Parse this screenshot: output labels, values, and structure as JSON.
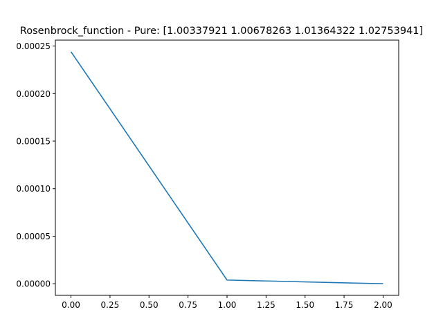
{
  "chart_data": {
    "type": "line",
    "title": "Rosenbrock_function - Pure: [1.00337921 1.00678263 1.01364322 1.02753941]",
    "xlabel": "",
    "ylabel": "",
    "xlim": [
      -0.1,
      2.1
    ],
    "ylim": [
      -1.22e-05,
      0.0002562
    ],
    "x_ticks": [
      0.0,
      0.25,
      0.5,
      0.75,
      1.0,
      1.25,
      1.5,
      1.75,
      2.0
    ],
    "x_tick_labels": [
      "0.00",
      "0.25",
      "0.50",
      "0.75",
      "1.00",
      "1.25",
      "1.50",
      "1.75",
      "2.00"
    ],
    "y_ticks": [
      0.0,
      5e-05,
      0.0001,
      0.00015,
      0.0002,
      0.00025
    ],
    "y_tick_labels": [
      "0.00000",
      "0.00005",
      "0.00010",
      "0.00015",
      "0.00020",
      "0.00025"
    ],
    "grid": false,
    "legend": "none",
    "series": [
      {
        "x": [
          0,
          1,
          2
        ],
        "y": [
          0.000244,
          3.9e-06,
          0.0
        ],
        "color": "#1f77b4"
      }
    ]
  }
}
